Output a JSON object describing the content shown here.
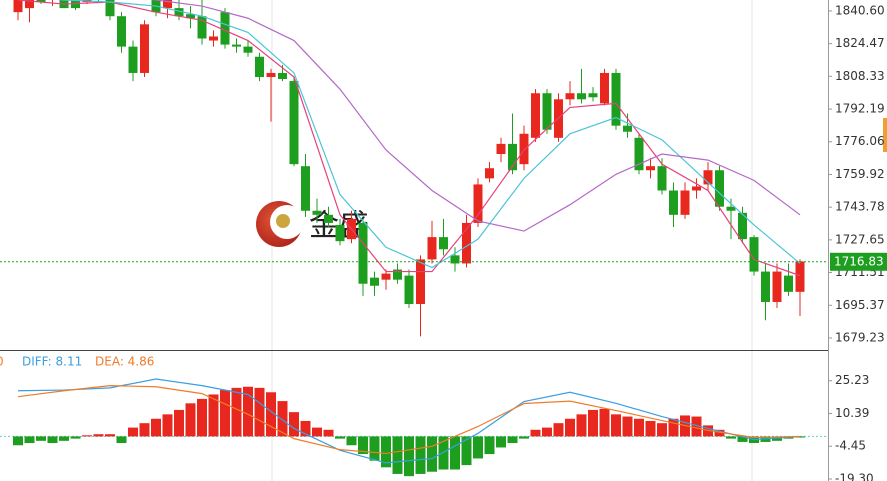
{
  "chart_data": [
    {
      "type": "candlestick",
      "up_color": "#e8281e",
      "down_color": "#1e9e1e",
      "open": [
        1840,
        1842,
        1846,
        1846,
        1847,
        1846,
        1845,
        1847,
        1846,
        1838,
        1823,
        1810,
        1847,
        1842,
        1842,
        1839,
        1838,
        1826,
        1840,
        1824,
        1823,
        1818,
        1808,
        1810,
        1806,
        1764,
        1742,
        1740,
        1735,
        1728,
        1736,
        1709,
        1708,
        1713,
        1710,
        1696,
        1718,
        1729,
        1720,
        1716,
        1736,
        1758,
        1770,
        1775,
        1765,
        1778,
        1800,
        1778,
        1797,
        1800,
        1800,
        1795,
        1810,
        1784,
        1778,
        1762,
        1764,
        1752,
        1740,
        1752,
        1755,
        1762,
        1744,
        1741,
        1729,
        1712,
        1697,
        1710,
        1702
      ],
      "high": [
        1847,
        1847,
        1848,
        1848,
        1848,
        1848,
        1850,
        1849,
        1848,
        1840,
        1826,
        1836,
        1849,
        1848,
        1846,
        1843,
        1846,
        1831,
        1842,
        1827,
        1826,
        1820,
        1812,
        1814,
        1808,
        1770,
        1748,
        1744,
        1738,
        1742,
        1738,
        1712,
        1713,
        1716,
        1713,
        1720,
        1737,
        1738,
        1724,
        1740,
        1758,
        1766,
        1778,
        1790,
        1784,
        1802,
        1802,
        1800,
        1806,
        1812,
        1803,
        1812,
        1812,
        1790,
        1780,
        1768,
        1768,
        1756,
        1756,
        1758,
        1766,
        1764,
        1748,
        1744,
        1730,
        1716,
        1716,
        1716,
        1718
      ],
      "low": [
        1836,
        1835,
        1844,
        1843,
        1842,
        1841,
        1844,
        1845,
        1836,
        1820,
        1806,
        1808,
        1838,
        1837,
        1836,
        1832,
        1824,
        1823,
        1822,
        1820,
        1818,
        1806,
        1786,
        1806,
        1764,
        1739,
        1736,
        1734,
        1725,
        1726,
        1700,
        1700,
        1703,
        1706,
        1694,
        1680,
        1716,
        1720,
        1712,
        1714,
        1734,
        1756,
        1766,
        1760,
        1762,
        1776,
        1780,
        1776,
        1794,
        1795,
        1796,
        1794,
        1782,
        1778,
        1760,
        1758,
        1750,
        1734,
        1738,
        1748,
        1752,
        1742,
        1728,
        1726,
        1710,
        1688,
        1694,
        1700,
        1690
      ],
      "close": [
        1846,
        1846,
        1845,
        1847,
        1842,
        1842,
        1847,
        1846,
        1838,
        1823,
        1810,
        1834,
        1840,
        1846,
        1838,
        1837,
        1827,
        1828,
        1824,
        1823,
        1820,
        1808,
        1810,
        1807,
        1765,
        1742,
        1740,
        1736,
        1727,
        1738,
        1706,
        1705,
        1711,
        1708,
        1696,
        1718,
        1729,
        1723,
        1716,
        1736,
        1755,
        1763,
        1775,
        1762,
        1780,
        1800,
        1782,
        1797,
        1800,
        1797,
        1798,
        1810,
        1784,
        1781,
        1762,
        1764,
        1752,
        1740,
        1752,
        1754,
        1762,
        1744,
        1742,
        1728,
        1712,
        1697,
        1712,
        1702,
        1717
      ],
      "series": [
        {
          "color": "#e8407a",
          "x": [
            0,
            4,
            8,
            12,
            16,
            20,
            24,
            28,
            32,
            36,
            40,
            44,
            48,
            52,
            56,
            60,
            64,
            68
          ],
          "values": [
            1846,
            1844,
            1845,
            1840,
            1836,
            1826,
            1808,
            1740,
            1712,
            1712,
            1740,
            1772,
            1793,
            1795,
            1765,
            1752,
            1718,
            1710
          ]
        },
        {
          "color": "#4cc4d8",
          "x": [
            0,
            4,
            8,
            12,
            16,
            20,
            24,
            28,
            32,
            36,
            40,
            44,
            48,
            52,
            56,
            60,
            64,
            68
          ],
          "values": [
            1848,
            1846,
            1845,
            1843,
            1838,
            1830,
            1810,
            1750,
            1724,
            1714,
            1728,
            1758,
            1780,
            1788,
            1777,
            1756,
            1735,
            1716
          ]
        },
        {
          "color": "#b46ac8",
          "x": [
            0,
            4,
            8,
            12,
            16,
            20,
            24,
            28,
            32,
            36,
            40,
            44,
            48,
            52,
            56,
            60,
            64,
            68
          ],
          "values": [
            1852,
            1850,
            1849,
            1846,
            1843,
            1837,
            1826,
            1802,
            1772,
            1752,
            1737,
            1732,
            1745,
            1760,
            1770,
            1767,
            1757,
            1740
          ]
        }
      ],
      "last_price": 1716.83,
      "last_price_color": "#1e9e1e",
      "watermark": "金盛",
      "ylim": [
        1673.3,
        1846.0
      ],
      "yticks": [
        {
          "value": 1840.6,
          "label": "1840.60"
        },
        1824.47,
        1808.33,
        1792.19,
        1776.06,
        1759.92,
        1743.78,
        1727.65,
        1711.51,
        1695.37,
        1679.23
      ]
    },
    {
      "type": "macd",
      "legend": [
        {
          "text": "0",
          "color": "#f07c2a"
        },
        {
          "text": "DIFF: 8.11",
          "color": "#3a9ee0"
        },
        {
          "text": "DEA: 4.86",
          "color": "#f07c2a"
        }
      ],
      "up_color": "#e8281e",
      "down_color": "#1e9e1e",
      "values": [
        -4,
        -3,
        -2,
        -3,
        -2,
        -1,
        0.5,
        1,
        1,
        -3,
        4,
        6,
        8,
        10,
        12,
        15,
        17,
        19,
        21,
        22,
        22.5,
        22,
        20,
        16,
        11,
        7,
        4,
        3,
        -1,
        -4,
        -8,
        -11,
        -14,
        -17,
        -18,
        -17,
        -16,
        -15,
        -15,
        -13,
        -10,
        -8,
        -5,
        -3,
        -1,
        3,
        4,
        6,
        8,
        10,
        12,
        12.5,
        10,
        9,
        8,
        7,
        6,
        8,
        9.5,
        9,
        5,
        3,
        -1,
        -2.5,
        -3,
        -2.5,
        -2,
        -1,
        -0.5
      ],
      "series": [
        {
          "color": "#3a9ee0",
          "x": [
            0,
            4,
            8,
            12,
            16,
            20,
            24,
            28,
            32,
            36,
            40,
            44,
            48,
            52,
            56,
            60,
            64,
            68
          ],
          "values": [
            20.7,
            21,
            22,
            26,
            23,
            19,
            3.6,
            -6.3,
            -12,
            -10,
            1.4,
            15.8,
            20,
            15,
            9,
            3.6,
            -1.4,
            0
          ]
        },
        {
          "color": "#f07c2a",
          "x": [
            0,
            4,
            8,
            12,
            16,
            20,
            24,
            28,
            32,
            36,
            40,
            44,
            48,
            52,
            56,
            60,
            64,
            68
          ],
          "values": [
            18,
            20.7,
            23,
            22.5,
            19.4,
            10,
            -1,
            -6,
            -7.7,
            -4.5,
            4.5,
            14.9,
            16,
            11.7,
            7.2,
            2.7,
            -0.5,
            0
          ]
        }
      ],
      "ylim": [
        -20.2,
        38.7
      ],
      "yticks": [
        25.23,
        10.39,
        -4.45,
        {
          "value": -19.3,
          "label": "-19.30"
        }
      ]
    }
  ]
}
